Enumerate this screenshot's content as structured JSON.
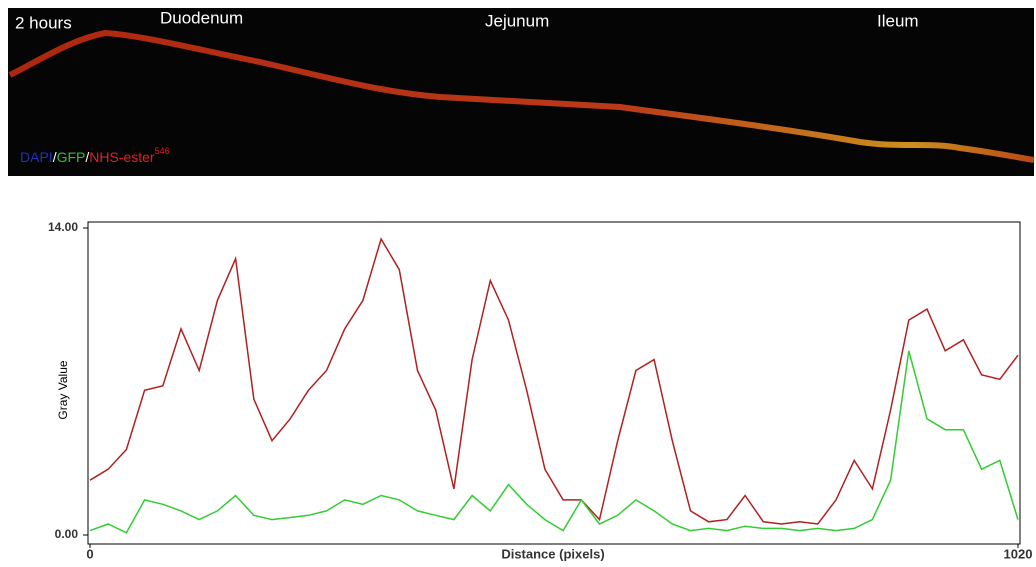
{
  "image": {
    "time_label": "2 hours",
    "regions": [
      "Duodenum",
      "Jejunum",
      "Ileum"
    ],
    "stain": {
      "dapi": "DAPI",
      "sep1": "/",
      "gfp": "GFP",
      "sep2": "/",
      "nhs": "NHS-ester",
      "nhs_sup": "546"
    }
  },
  "chart_data": {
    "type": "line",
    "y_label": "Gray Value",
    "x_label": "Distance (pixels)",
    "x": [
      0,
      20,
      40,
      60,
      80,
      100,
      120,
      140,
      160,
      180,
      200,
      220,
      240,
      260,
      280,
      300,
      320,
      340,
      360,
      380,
      400,
      420,
      440,
      460,
      480,
      500,
      520,
      540,
      560,
      580,
      600,
      620,
      640,
      660,
      680,
      700,
      720,
      740,
      760,
      780,
      800,
      820,
      840,
      860,
      880,
      900,
      920,
      940,
      960,
      980,
      1000,
      1020
    ],
    "series": [
      {
        "name": "NHS-ester",
        "color": "#b22020",
        "values": [
          2.5,
          3.0,
          3.9,
          6.6,
          6.8,
          9.4,
          7.5,
          10.7,
          12.6,
          6.2,
          4.3,
          5.3,
          6.6,
          7.5,
          9.4,
          10.7,
          13.5,
          12.1,
          7.5,
          5.7,
          2.1,
          8.0,
          11.6,
          9.8,
          6.6,
          3.0,
          1.6,
          1.6,
          0.7,
          4.3,
          7.5,
          8.0,
          4.3,
          1.1,
          0.6,
          0.7,
          1.8,
          0.6,
          0.5,
          0.6,
          0.5,
          1.6,
          3.4,
          2.1,
          5.7,
          9.8,
          10.3,
          8.4,
          8.9,
          7.3,
          7.1,
          8.2
        ]
      },
      {
        "name": "GFP",
        "color": "#33cc33",
        "values": [
          0.2,
          0.5,
          0.1,
          1.6,
          1.4,
          1.1,
          0.7,
          1.1,
          1.8,
          0.9,
          0.7,
          0.8,
          0.9,
          1.1,
          1.6,
          1.4,
          1.8,
          1.6,
          1.1,
          0.9,
          0.7,
          1.8,
          1.1,
          2.3,
          1.4,
          0.7,
          0.2,
          1.6,
          0.5,
          0.9,
          1.6,
          1.1,
          0.5,
          0.2,
          0.3,
          0.2,
          0.4,
          0.3,
          0.3,
          0.2,
          0.3,
          0.2,
          0.3,
          0.7,
          2.5,
          8.4,
          5.3,
          4.8,
          4.8,
          3.0,
          3.4,
          0.7
        ]
      }
    ],
    "xlim": [
      0,
      1020
    ],
    "ylim": [
      0,
      14
    ],
    "xticks": [
      0,
      1020
    ],
    "yticks": [
      {
        "value": 0,
        "label": "0.00"
      },
      {
        "value": 14,
        "label": "14.00"
      }
    ]
  }
}
